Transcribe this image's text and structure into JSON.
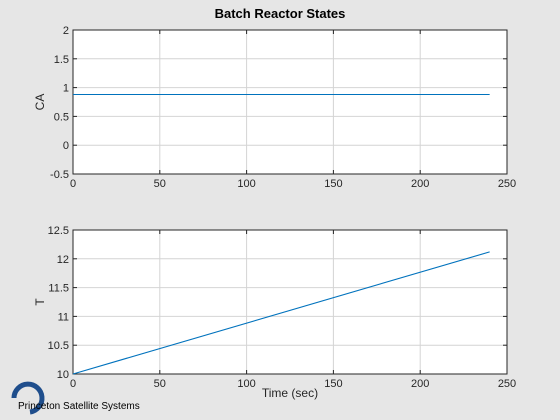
{
  "figure": {
    "title": "Batch Reactor States",
    "logo_text": "Princeton Satellite Systems",
    "colors": {
      "series": "#0072bd",
      "background": "#e6e6e6",
      "logo": "#1f4e8c"
    }
  },
  "chart_data": [
    {
      "type": "line",
      "title": "Batch Reactor States",
      "xlabel": "",
      "ylabel": "CA",
      "xlim": [
        0,
        250
      ],
      "ylim": [
        -0.5,
        2
      ],
      "xticks": [
        0,
        50,
        100,
        150,
        200,
        250
      ],
      "yticks": [
        -0.5,
        0,
        0.5,
        1,
        1.5,
        2
      ],
      "xtick_labels": [
        "0",
        "50",
        "100",
        "150",
        "200",
        "250"
      ],
      "ytick_labels": [
        "-0.5",
        "0",
        "0.5",
        "1",
        "1.5",
        "2"
      ],
      "grid": true,
      "series": [
        {
          "x": [
            0,
            240
          ],
          "y": [
            0.88,
            0.88
          ]
        }
      ]
    },
    {
      "type": "line",
      "title": "",
      "xlabel": "Time (sec)",
      "ylabel": "T",
      "xlim": [
        0,
        250
      ],
      "ylim": [
        10,
        12.5
      ],
      "xticks": [
        0,
        50,
        100,
        150,
        200,
        250
      ],
      "yticks": [
        10,
        10.5,
        11,
        11.5,
        12,
        12.5
      ],
      "xtick_labels": [
        "0",
        "50",
        "100",
        "150",
        "200",
        "250"
      ],
      "ytick_labels": [
        "10",
        "10.5",
        "11",
        "11.5",
        "12",
        "12.5"
      ],
      "grid": true,
      "series": [
        {
          "x": [
            0,
            240
          ],
          "y": [
            10,
            12.12
          ]
        }
      ]
    }
  ]
}
